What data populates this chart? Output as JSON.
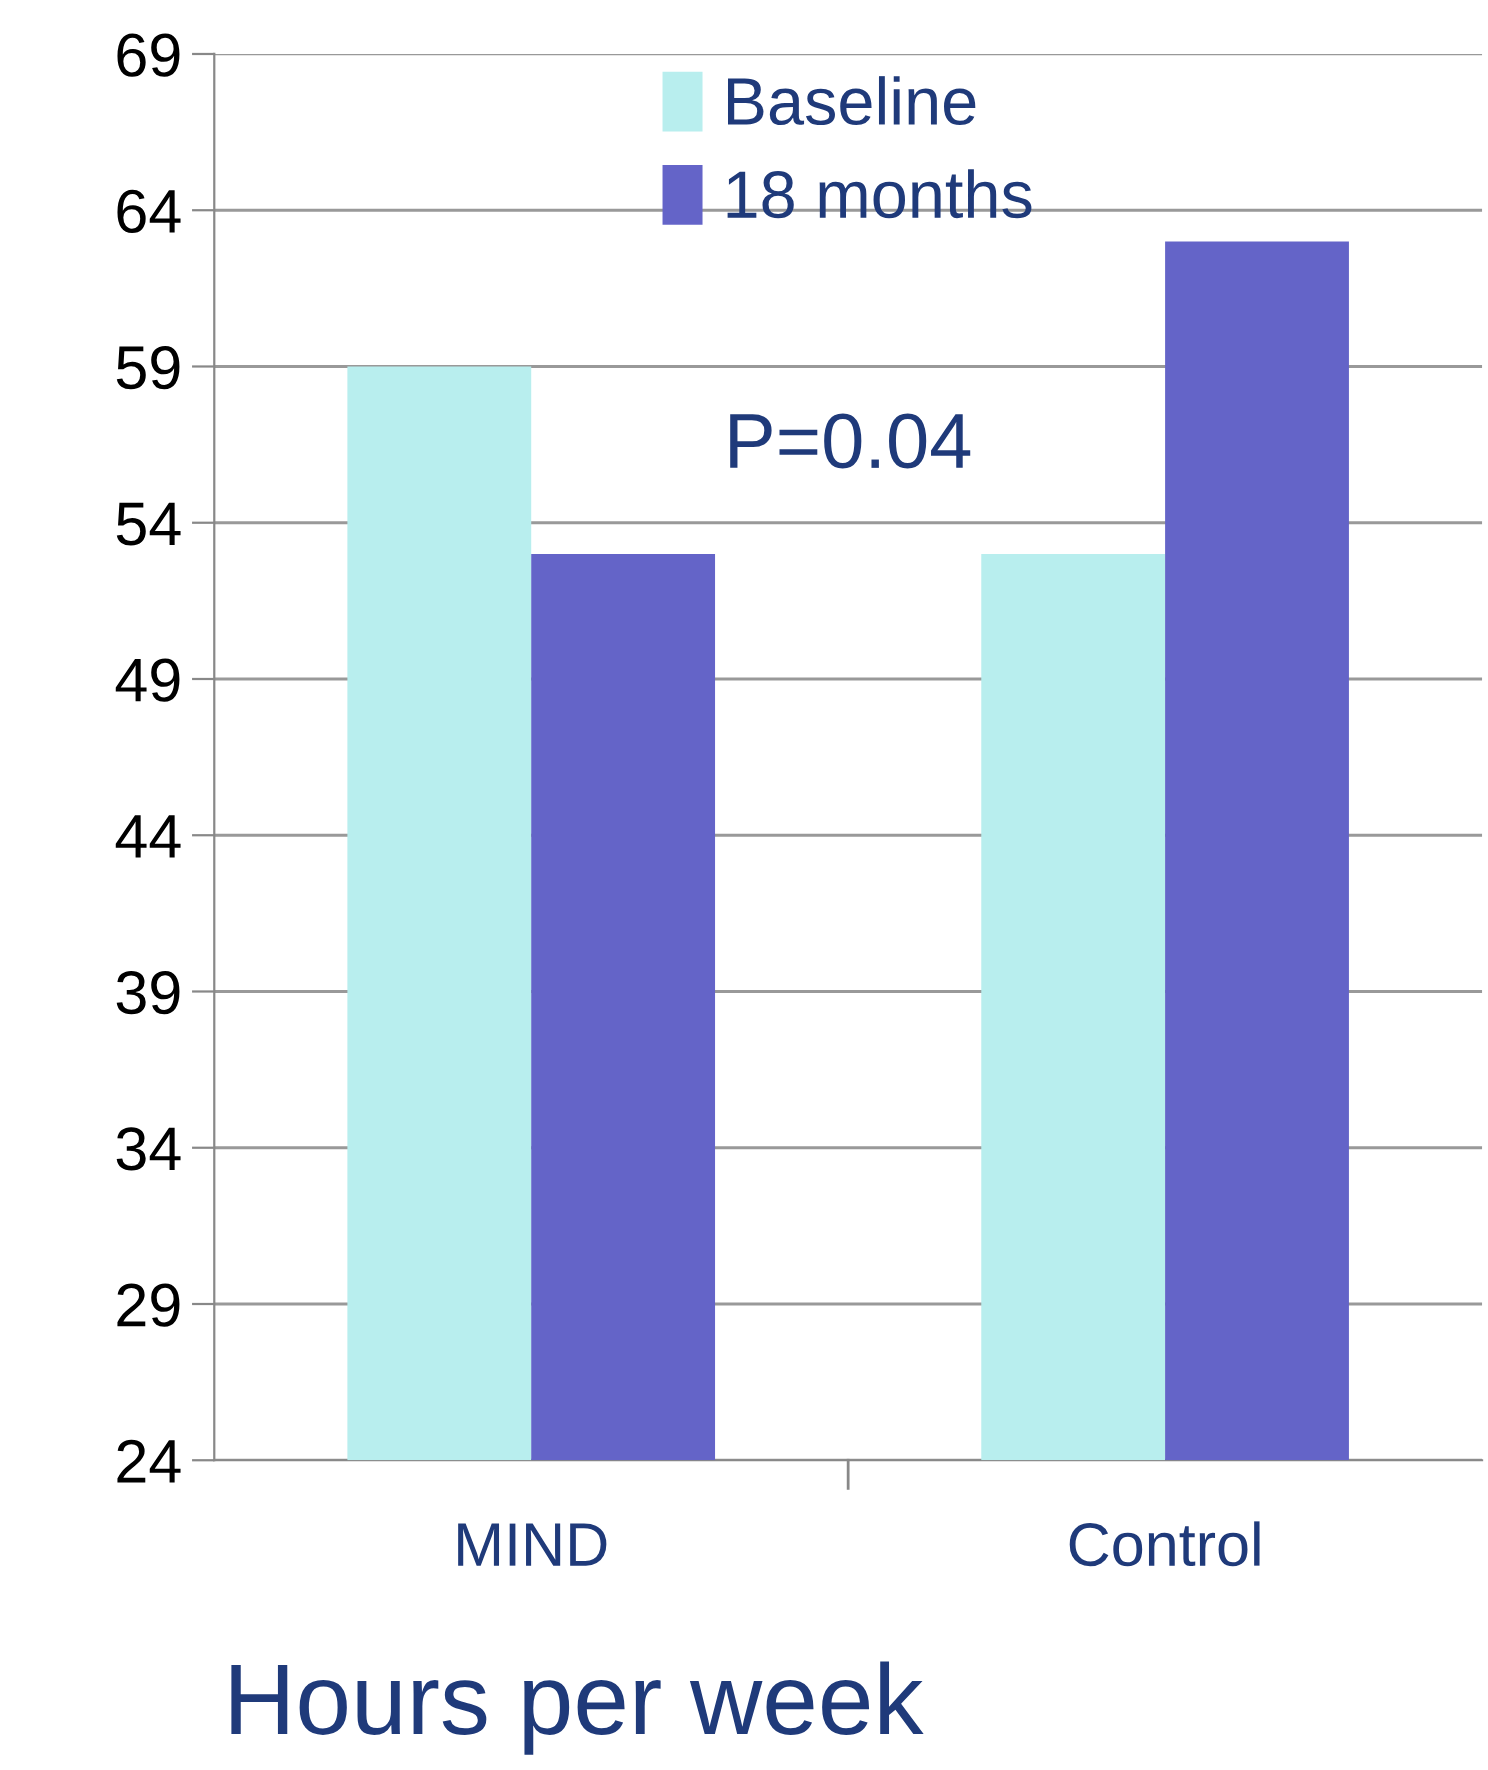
{
  "chart_data": {
    "type": "bar",
    "xlabel": "Hours per week",
    "annotations": [
      "P=0.04"
    ],
    "categories": [
      "MIND",
      "Control"
    ],
    "series": [
      {
        "name": "Baseline",
        "color": "#b8eeee",
        "values": [
          59,
          53
        ]
      },
      {
        "name": "18 months",
        "color": "#6464c8",
        "values": [
          53,
          63
        ]
      }
    ],
    "ylim": [
      24,
      69
    ],
    "yticks": [
      24,
      29,
      34,
      39,
      44,
      49,
      54,
      59,
      64,
      69
    ],
    "grid": "y",
    "legend": "top"
  }
}
